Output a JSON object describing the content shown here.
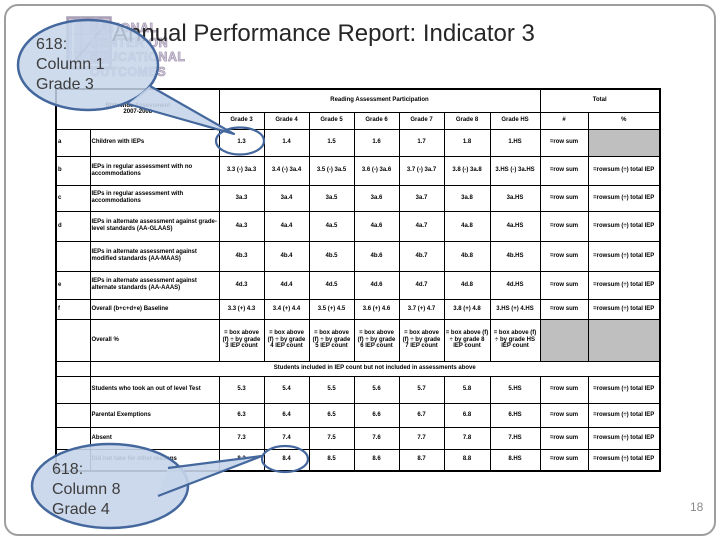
{
  "slide": {
    "title": "Annual Performance Report: Indicator 3",
    "page_number": "18"
  },
  "logo": {
    "icon_name": "grid-chart-logo-icon",
    "text": "NATIONAL\nCENTER ON\nEDUCATIONAL\nOUTCOMES"
  },
  "callout_top": {
    "text": "618:\nColumn 1\nGrade 3"
  },
  "callout_bottom": {
    "text": "618:\nColumn 8\nGrade 4"
  },
  "colors": {
    "callout_fill": "#c6d5ea",
    "callout_border": "#44689d",
    "highlight_circle": "#44689d",
    "gray_cell": "#bfbfbf"
  },
  "table": {
    "corner_header": "Statewide Assessment\n2007-2008",
    "main_header": "Reading Assessment Participation",
    "total_header": "Total",
    "col_headers": [
      "Grade 3",
      "Grade 4",
      "Grade 5",
      "Grade 6",
      "Grade 7",
      "Grade 8",
      "Grade HS",
      "#",
      "%"
    ],
    "rows": [
      {
        "letter": "a",
        "label": "Children with IEPs",
        "cells": [
          "1.3",
          "1.4",
          "1.5",
          "1.6",
          "1.7",
          "1.8",
          "1.HS",
          "=row sum",
          ""
        ]
      },
      {
        "letter": "b",
        "label": "IEPs in regular assessment with no accommodations",
        "cells": [
          "3.3 (-) 3a.3",
          "3.4 (-) 3a.4",
          "3.5 (-) 3a.5",
          "3.6 (-) 3a.6",
          "3.7 (-) 3a.7",
          "3.8 (-) 3a.8",
          "3.HS (-) 3a.HS",
          "=row sum",
          "=rowsum (÷) total IEP"
        ]
      },
      {
        "letter": "c",
        "label": "IEPs in regular assessment with accommodations",
        "cells": [
          "3a.3",
          "3a.4",
          "3a.5",
          "3a.6",
          "3a.7",
          "3a.8",
          "3a.HS",
          "=row sum",
          "=rowsum (÷) total IEP"
        ]
      },
      {
        "letter": "d",
        "label": "IEPs in alternate assessment against grade-level standards (AA-GLAAS)",
        "cells": [
          "4a.3",
          "4a.4",
          "4a.5",
          "4a.6",
          "4a.7",
          "4a.8",
          "4a.HS",
          "=row sum",
          "=rowsum (÷) total IEP"
        ]
      },
      {
        "letter": "",
        "label": "IEPs in alternate assessment against modified standards (AA-MAAS)",
        "cells": [
          "4b.3",
          "4b.4",
          "4b.5",
          "4b.6",
          "4b.7",
          "4b.8",
          "4b.HS",
          "=row sum",
          "=rowsum (÷) total IEP"
        ]
      },
      {
        "letter": "e",
        "label": "IEPs in alternate assessment against alternate standards (AA-AAAS)",
        "cells": [
          "4d.3",
          "4d.4",
          "4d.5",
          "4d.6",
          "4d.7",
          "4d.8",
          "4d.HS",
          "=row sum",
          "=rowsum (÷) total IEP"
        ]
      },
      {
        "letter": "f",
        "label": "Overall (b+c+d+e) Baseline",
        "cells": [
          "3.3 (+) 4.3",
          "3.4 (+) 4.4",
          "3.5 (+) 4.5",
          "3.6 (+) 4.6",
          "3.7 (+) 4.7",
          "3.8 (+) 4.8",
          "3.HS (+) 4.HS",
          "=row sum",
          "=rowsum (÷) total IEP"
        ]
      },
      {
        "letter": "",
        "label": "Overall %",
        "cells": [
          "= box above (f) ÷ by grade 3 IEP count",
          "= box above (f) ÷ by grade 4 IEP count",
          "= box above (f) ÷ by grade 5 IEP count",
          "= box above (f) ÷ by grade 6 IEP count",
          "= box above (f) ÷ by grade 7 IEP count",
          "= box above (f) ÷ by grade 8 IEP count",
          "= box above (f) ÷ by grade HS IEP count",
          "",
          ""
        ]
      }
    ],
    "section_header": "Students included in IEP count but not included in assessments above",
    "bottom_rows": [
      {
        "letter": "",
        "label": "Students who took an out of level Test",
        "cells": [
          "5.3",
          "5.4",
          "5.5",
          "5.6",
          "5.7",
          "5.8",
          "5.HS",
          "=row sum",
          "=rowsum (÷) total IEP"
        ]
      },
      {
        "letter": "",
        "label": "Parental Exemptions",
        "cells": [
          "6.3",
          "6.4",
          "6.5",
          "6.6",
          "6.7",
          "6.8",
          "6.HS",
          "=row sum",
          "=rowsum (÷) total IEP"
        ]
      },
      {
        "letter": "",
        "label": "Absent",
        "cells": [
          "7.3",
          "7.4",
          "7.5",
          "7.6",
          "7.7",
          "7.8",
          "7.HS",
          "=row sum",
          "=rowsum (÷) total IEP"
        ]
      },
      {
        "letter": "",
        "label": "Did not take for other reasons",
        "cells": [
          "8.3",
          "8.4",
          "8.5",
          "8.6",
          "8.7",
          "8.8",
          "8.HS",
          "=row sum",
          "=rowsum (÷) total IEP"
        ]
      }
    ]
  }
}
